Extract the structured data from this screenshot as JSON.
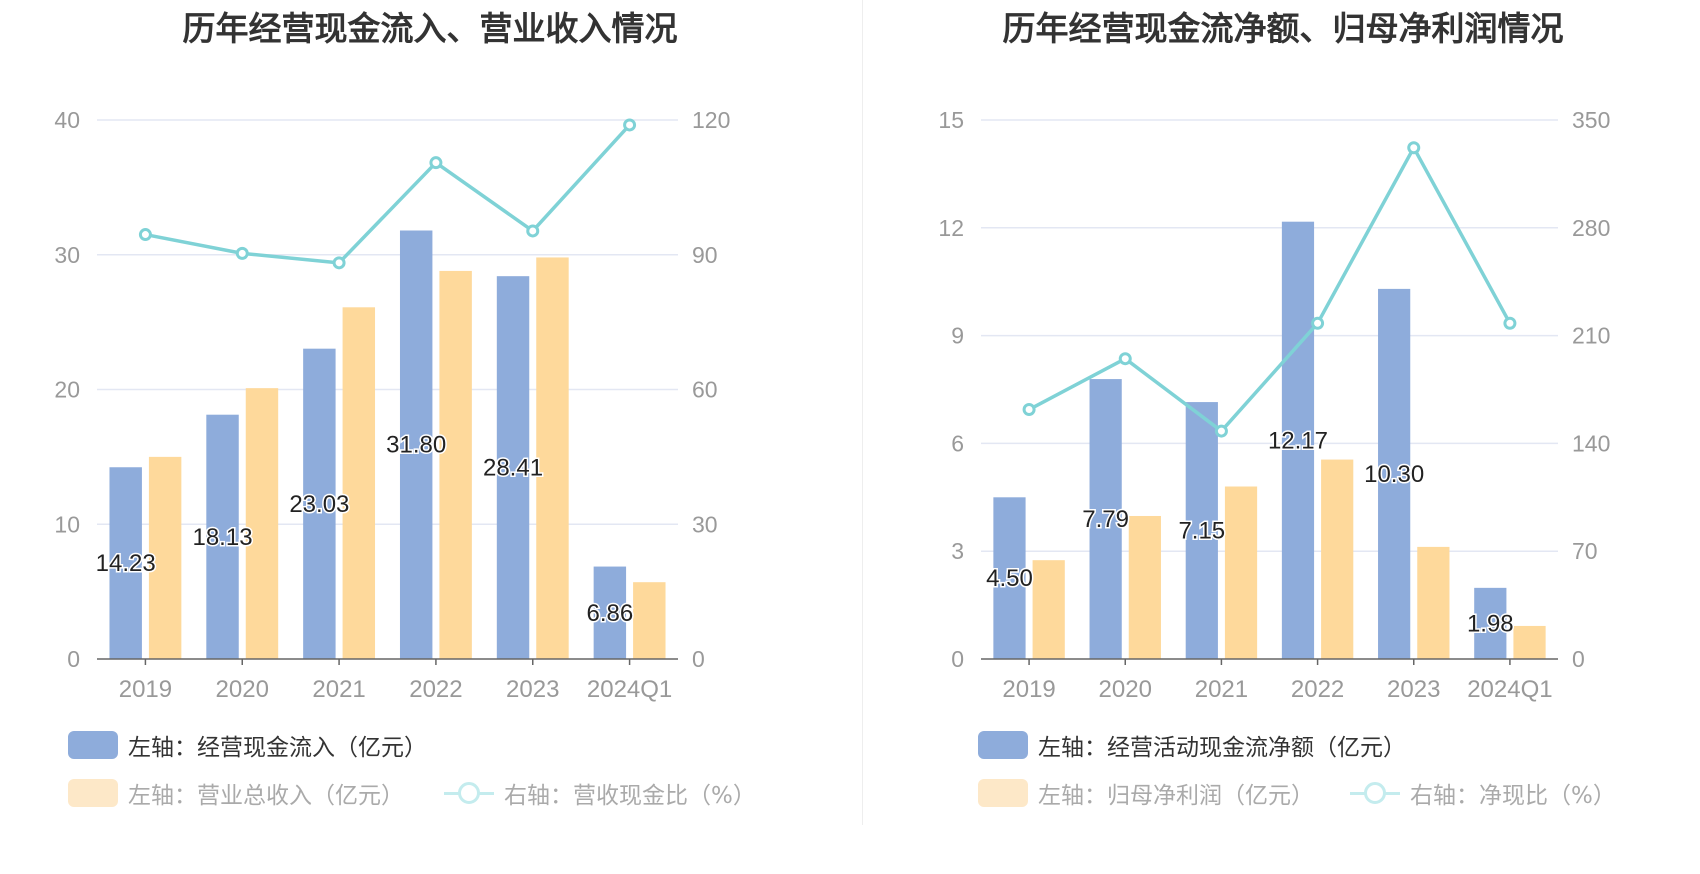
{
  "colors": {
    "bar_primary": "#8eacdb",
    "bar_secondary": "#fed99b",
    "line": "#7fd2d6",
    "grid": "#e3e7f3",
    "axis": "#666666",
    "muted_legend_text": "#aaaaaa"
  },
  "chart_data": [
    {
      "type": "bar",
      "title": "历年经营现金流入、营业收入情况",
      "categories": [
        "2019",
        "2020",
        "2021",
        "2022",
        "2023",
        "2024Q1"
      ],
      "left_axis": {
        "ylim": [
          0,
          40
        ],
        "ticks": [
          "0",
          "10",
          "20",
          "30",
          "40"
        ]
      },
      "right_axis": {
        "ylim": [
          0,
          120
        ],
        "ticks": [
          "0",
          "30",
          "60",
          "90",
          "120"
        ]
      },
      "grid": true,
      "legend_position": "bottom",
      "series": [
        {
          "name": "左轴：经营现金流入（亿元）",
          "kind": "bar",
          "axis": "left",
          "values": [
            14.23,
            18.13,
            23.03,
            31.8,
            28.41,
            6.86
          ],
          "labels": [
            "14.23",
            "18.13",
            "23.03",
            "31.80",
            "28.41",
            "6.86"
          ]
        },
        {
          "name": "左轴：营业总收入（亿元）",
          "kind": "bar",
          "axis": "left",
          "values": [
            15.0,
            20.1,
            26.1,
            28.8,
            29.8,
            5.7
          ]
        },
        {
          "name": "右轴：营收现金比（%）",
          "kind": "line",
          "axis": "right",
          "values": [
            94.5,
            90.3,
            88.2,
            110.5,
            95.3,
            118.9
          ]
        }
      ]
    },
    {
      "type": "bar",
      "title": "历年经营现金流净额、归母净利润情况",
      "categories": [
        "2019",
        "2020",
        "2021",
        "2022",
        "2023",
        "2024Q1"
      ],
      "left_axis": {
        "ylim": [
          0,
          15
        ],
        "ticks": [
          "0",
          "3",
          "6",
          "9",
          "12",
          "15"
        ]
      },
      "right_axis": {
        "ylim": [
          0,
          350
        ],
        "ticks": [
          "0",
          "70",
          "140",
          "210",
          "280",
          "350"
        ]
      },
      "grid": true,
      "legend_position": "bottom",
      "series": [
        {
          "name": "左轴：经营活动现金流净额（亿元）",
          "kind": "bar",
          "axis": "left",
          "values": [
            4.5,
            7.79,
            7.15,
            12.17,
            10.3,
            1.98
          ],
          "labels": [
            "4.50",
            "7.79",
            "7.15",
            "12.17",
            "10.30",
            "1.98"
          ]
        },
        {
          "name": "左轴：归母净利润（亿元）",
          "kind": "bar",
          "axis": "left",
          "values": [
            2.75,
            3.98,
            4.8,
            5.55,
            3.12,
            0.92
          ]
        },
        {
          "name": "右轴：净现比（%）",
          "kind": "line",
          "axis": "right",
          "values": [
            162,
            195,
            148,
            218,
            332,
            218
          ]
        }
      ]
    }
  ]
}
